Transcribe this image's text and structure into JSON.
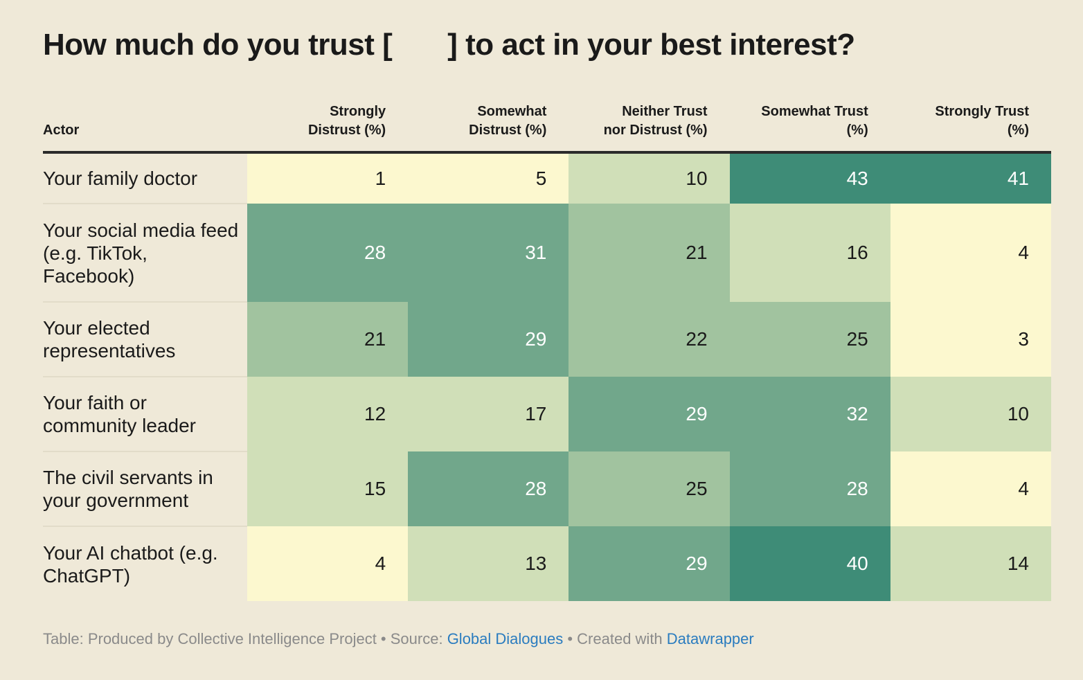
{
  "title": {
    "before": "How much do you trust [",
    "after": "] to act in your best interest?"
  },
  "colors": {
    "background": "#efe9d8",
    "scale": [
      "#fcf8cf",
      "#d0dfb8",
      "#a1c39f",
      "#71a78b",
      "#3e8c77"
    ]
  },
  "chart_data": {
    "type": "table",
    "title": "How much do you trust [ ] to act in your best interest?",
    "columns": [
      {
        "label": "Actor",
        "line1": "Actor",
        "line2": ""
      },
      {
        "label": "Strongly Distrust (%)",
        "line1": "Strongly",
        "line2": "Distrust (%)"
      },
      {
        "label": "Somewhat Distrust (%)",
        "line1": "Somewhat",
        "line2": "Distrust (%)"
      },
      {
        "label": "Neither Trust nor Distrust (%)",
        "line1": "Neither Trust",
        "line2": "nor Distrust (%)"
      },
      {
        "label": "Somewhat Trust (%)",
        "line1": "Somewhat Trust",
        "line2": "(%)"
      },
      {
        "label": "Strongly Trust (%)",
        "line1": "Strongly Trust",
        "line2": "(%)"
      }
    ],
    "rows": [
      {
        "actor": "Your family doctor",
        "values": [
          1,
          5,
          10,
          43,
          41
        ]
      },
      {
        "actor": "Your social media feed (e.g. TikTok, Facebook)",
        "values": [
          28,
          31,
          21,
          16,
          4
        ]
      },
      {
        "actor": "Your elected representatives",
        "values": [
          21,
          29,
          22,
          25,
          3
        ]
      },
      {
        "actor": "Your faith or community leader",
        "values": [
          12,
          17,
          29,
          32,
          10
        ]
      },
      {
        "actor": "The civil servants in your government",
        "values": [
          15,
          28,
          25,
          28,
          4
        ]
      },
      {
        "actor": "Your AI chatbot (e.g. ChatGPT)",
        "values": [
          4,
          13,
          29,
          40,
          14
        ]
      }
    ]
  },
  "footer": {
    "prefix": "Table: Produced by Collective Intelligence Project • Source: ",
    "source_link": "Global Dialogues",
    "middle": " • Created with ",
    "tool_link": "Datawrapper"
  }
}
